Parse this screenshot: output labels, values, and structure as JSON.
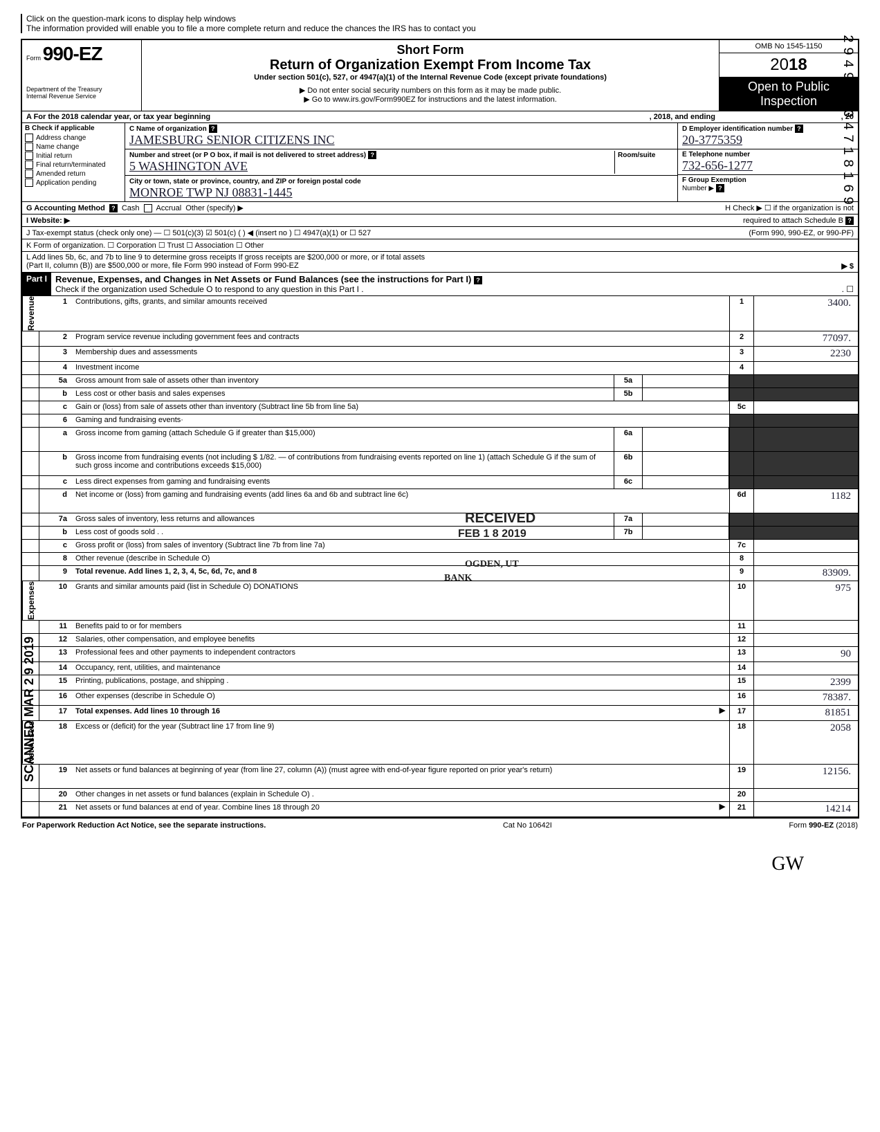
{
  "topHint1": "Click on the question-mark icons to display help windows",
  "topHint2": "The information provided will enable you to file a more complete return and reduce the chances the IRS has to contact you",
  "vertMargin": "29490204718169",
  "vertScanned": "SCANNED MAR 2 9 2019",
  "header": {
    "formWord": "Form",
    "formNumber": "990-EZ",
    "shortForm": "Short Form",
    "returnTitle": "Return of Organization Exempt From Income Tax",
    "underSection": "Under section 501(c), 527, or 4947(a)(1) of the Internal Revenue Code (except private foundations)",
    "doNotEnter": "▶ Do not enter social security numbers on this form as it may be made public.",
    "goTo": "▶ Go to www.irs.gov/Form990EZ for instructions and the latest information.",
    "dept": "Department of the Treasury",
    "irs": "Internal Revenue Service",
    "omb": "OMB No 1545-1150",
    "yearPrefix": "20",
    "yearBold": "18",
    "openPublic1": "Open to Public",
    "openPublic2": "Inspection"
  },
  "rowA": {
    "left": "A  For the 2018 calendar year, or tax year beginning",
    "mid": ", 2018, and ending",
    "right": ", 20"
  },
  "bCol": {
    "header": "B  Check if applicable",
    "items": [
      "Address change",
      "Name change",
      "Initial return",
      "Final return/terminated",
      "Amended return",
      "Application pending"
    ]
  },
  "cCol": {
    "nameLabel": "C  Name of organization",
    "nameVal": "JAMESBURG SENIOR CITIZENS INC",
    "addrLabel": "Number and street (or P O  box, if mail is not delivered to street address)",
    "roomSuite": "Room/suite",
    "addrVal": "5 WASHINGTON AVE",
    "cityLabel": "City or town, state or province, country, and ZIP or foreign postal code",
    "cityVal": "MONROE TWP  NJ 08831-1445"
  },
  "dCol": {
    "einLabel": "D  Employer identification number",
    "einVal": "20-3775359",
    "telLabel": "E  Telephone number",
    "telVal": "732-656-1277",
    "groupLabel": "F  Group Exemption",
    "groupNumber": "Number ▶"
  },
  "rowG": {
    "label": "G  Accounting Method",
    "cash": "Cash",
    "accrual": "Accrual",
    "other": "Other (specify) ▶",
    "hLabel": "H  Check ▶ ☐ if the organization is not"
  },
  "rowI": {
    "label": "I   Website: ▶",
    "hCont": "required to attach Schedule B",
    "hForm": "(Form 990, 990-EZ, or 990-PF)"
  },
  "rowJ": "J  Tax-exempt status (check only one) — ☐ 501(c)(3)   ☑ 501(c) (        ) ◀ (insert no ) ☐ 4947(a)(1) or   ☐ 527",
  "rowK": "K  Form of organization.   ☐ Corporation    ☐ Trust    ☐ Association    ☐ Other",
  "rowL1": "L  Add lines 5b, 6c, and 7b to line 9 to determine gross receipts  If gross receipts are $200,000 or more, or if total assets",
  "rowL2": "(Part II, column (B)) are $500,000 or more, file Form 990 instead of Form 990-EZ",
  "rowLRight": "▶    $",
  "part1": {
    "label": "Part I",
    "title": "Revenue, Expenses, and Changes in Net Assets or Fund Balances (see the instructions for Part I)",
    "check": "Check if the organization used Schedule O to respond to any question in this Part I  ."
  },
  "sidebars": {
    "revenue": "Revenue",
    "expenses": "Expenses",
    "netassets": "Net Assets"
  },
  "lines": [
    {
      "n": "1",
      "desc": "Contributions, gifts, grants, and similar amounts received",
      "rnum": "1",
      "rval": "3400."
    },
    {
      "n": "2",
      "desc": "Program service revenue including government fees and contracts",
      "rnum": "2",
      "rval": "77097."
    },
    {
      "n": "3",
      "desc": "Membership dues and assessments",
      "rnum": "3",
      "rval": "2230"
    },
    {
      "n": "4",
      "desc": "Investment income",
      "rnum": "4",
      "rval": ""
    },
    {
      "n": "5a",
      "desc": "Gross amount from sale of assets other than inventory",
      "mid": "5a",
      "rshade": true
    },
    {
      "n": "b",
      "desc": "Less  cost or other basis and sales expenses",
      "mid": "5b",
      "rshade": true
    },
    {
      "n": "c",
      "desc": "Gain or (loss) from sale of assets other than inventory (Subtract line 5b from line 5a)",
      "rnum": "5c",
      "rval": ""
    },
    {
      "n": "6",
      "desc": "Gaming and fundraising events·",
      "rshade": true,
      "noRnum": true
    },
    {
      "n": "a",
      "desc": "Gross income from gaming (attach Schedule G if greater than $15,000)",
      "mid": "6a",
      "rshade": true,
      "tall": true
    },
    {
      "n": "b",
      "desc": "Gross income from fundraising events (not including  $ 1/82. —       of contributions from fundraising events reported on line 1) (attach Schedule G if the sum of such gross income and contributions exceeds $15,000)",
      "mid": "6b",
      "rshade": true,
      "tall": true
    },
    {
      "n": "c",
      "desc": "Less  direct expenses from gaming and fundraising events",
      "mid": "6c",
      "rshade": true
    },
    {
      "n": "d",
      "desc": "Net income or (loss) from gaming and fundraising events (add lines 6a and 6b and subtract line 6c)",
      "rnum": "6d",
      "rval": "1182",
      "tall": true
    },
    {
      "n": "7a",
      "desc": "Gross sales of inventory, less returns and allowances",
      "mid": "7a",
      "rshade": true
    },
    {
      "n": "b",
      "desc": "Less  cost of goods sold  . .",
      "mid": "7b",
      "rshade": true
    },
    {
      "n": "c",
      "desc": "Gross profit or (loss) from sales of inventory (Subtract line 7b from line 7a)",
      "rnum": "7c",
      "rval": ""
    },
    {
      "n": "8",
      "desc": "Other revenue (describe in Schedule O)",
      "rnum": "8",
      "rval": ""
    },
    {
      "n": "9",
      "desc": "Total revenue. Add lines 1, 2, 3, 4, 5c, 6d, 7c, and 8",
      "rnum": "9",
      "rval": "83909.",
      "bold": true
    },
    {
      "n": "10",
      "desc": "Grants and similar amounts paid (list in Schedule O)         DONATIONS",
      "rnum": "10",
      "rval": "975"
    },
    {
      "n": "11",
      "desc": "Benefits paid to or for members",
      "rnum": "11",
      "rval": ""
    },
    {
      "n": "12",
      "desc": "Salaries, other compensation, and employee benefits",
      "rnum": "12",
      "rval": ""
    },
    {
      "n": "13",
      "desc": "Professional fees and other payments to independent contractors",
      "rnum": "13",
      "rval": "90"
    },
    {
      "n": "14",
      "desc": "Occupancy, rent, utilities, and maintenance",
      "rnum": "14",
      "rval": ""
    },
    {
      "n": "15",
      "desc": "Printing, publications, postage, and shipping .",
      "rnum": "15",
      "rval": "2399"
    },
    {
      "n": "16",
      "desc": "Other expenses (describe in Schedule O)",
      "rnum": "16",
      "rval": "78387."
    },
    {
      "n": "17",
      "desc": "Total expenses. Add lines 10 through 16",
      "rnum": "17",
      "rval": "81851",
      "bold": true,
      "arrow": true
    },
    {
      "n": "18",
      "desc": "Excess or (deficit) for the year (Subtract line 17 from line 9)",
      "rnum": "18",
      "rval": "2058"
    },
    {
      "n": "19",
      "desc": "Net assets or fund balances at beginning of year (from line 27, column (A)) (must agree with end-of-year figure reported on prior year's return)",
      "rnum": "19",
      "rval": "12156.",
      "tall": true
    },
    {
      "n": "20",
      "desc": "Other changes in net assets or fund balances (explain in Schedule O)  .",
      "rnum": "20",
      "rval": ""
    },
    {
      "n": "21",
      "desc": "Net assets or fund balances at end of year. Combine lines 18 through 20",
      "rnum": "21",
      "rval": "14214",
      "arrow": true
    }
  ],
  "stamps": {
    "received": "RECEIVED",
    "feb": "FEB 1 8 2019",
    "ogden": "OGDEN, UT",
    "bank": "BANK"
  },
  "bottom": {
    "left": "For Paperwork Reduction Act Notice, see the separate instructions.",
    "mid": "Cat No 10642I",
    "rightPre": "Form ",
    "rightBold": "990-EZ",
    "rightYear": " (2018)"
  },
  "initials": "GW"
}
